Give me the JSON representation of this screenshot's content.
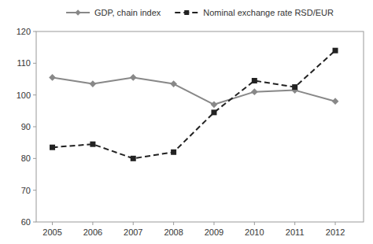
{
  "chart_data": {
    "type": "line",
    "x": [
      2005,
      2006,
      2007,
      2008,
      2009,
      2010,
      2011,
      2012
    ],
    "xlim": [
      2004.6,
      2012.7
    ],
    "xticks": [
      2005,
      2006,
      2007,
      2008,
      2009,
      2010,
      2011,
      2012
    ],
    "ylim": [
      60,
      120
    ],
    "yticks": [
      60,
      70,
      80,
      90,
      100,
      110,
      120
    ],
    "grid": false,
    "legend": "top",
    "series": [
      {
        "name": "GDP, chain index",
        "color": "#888888",
        "line_style": "solid",
        "marker": "diamond",
        "values": [
          105.5,
          103.5,
          105.5,
          103.5,
          97.0,
          101.0,
          101.5,
          98.0
        ]
      },
      {
        "name": "Nominal exchange rate RSD/EUR",
        "color": "#222222",
        "line_style": "dashed",
        "marker": "square",
        "values": [
          83.5,
          84.5,
          80.0,
          82.0,
          94.5,
          104.5,
          102.5,
          114.0
        ]
      }
    ]
  }
}
